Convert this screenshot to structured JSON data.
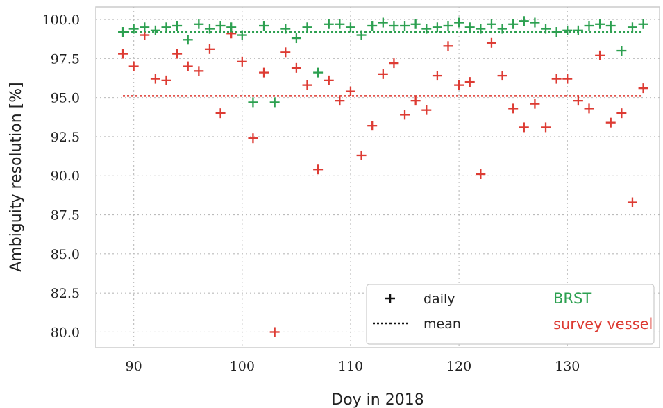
{
  "chart_data": {
    "type": "scatter",
    "xlabel": "Doy in 2018",
    "ylabel": "Ambiguity resolution [%]",
    "xlim": [
      86.5,
      138.5
    ],
    "ylim": [
      79.0,
      100.8
    ],
    "xticks": [
      90,
      100,
      110,
      120,
      130
    ],
    "xtick_labels": [
      "90",
      "100",
      "110",
      "120",
      "130"
    ],
    "yticks": [
      80.0,
      82.5,
      85.0,
      87.5,
      90.0,
      92.5,
      95.0,
      97.5,
      100.0
    ],
    "ytick_labels": [
      "80.0",
      "82.5",
      "85.0",
      "87.5",
      "90.0",
      "92.5",
      "95.0",
      "97.5",
      "100.0"
    ],
    "grid": true,
    "legend": {
      "placement": "bottom-right",
      "daily_label": "daily",
      "mean_label": "mean"
    },
    "series": [
      {
        "name": "BRST",
        "color": "#2ca050",
        "mean": 99.2,
        "x": [
          89,
          90,
          91,
          92,
          93,
          94,
          95,
          96,
          97,
          98,
          99,
          100,
          101,
          102,
          103,
          104,
          105,
          106,
          107,
          108,
          109,
          110,
          111,
          112,
          113,
          114,
          115,
          116,
          117,
          118,
          119,
          120,
          121,
          122,
          123,
          124,
          125,
          126,
          127,
          128,
          129,
          130,
          131,
          132,
          133,
          134,
          135,
          136,
          137
        ],
        "y": [
          99.2,
          99.4,
          99.5,
          99.3,
          99.5,
          99.6,
          98.7,
          99.7,
          99.4,
          99.6,
          99.5,
          99.0,
          94.7,
          99.6,
          94.7,
          99.4,
          98.8,
          99.5,
          96.6,
          99.7,
          99.7,
          99.5,
          99.0,
          99.6,
          99.8,
          99.6,
          99.6,
          99.7,
          99.4,
          99.5,
          99.6,
          99.8,
          99.5,
          99.4,
          99.7,
          99.4,
          99.7,
          99.9,
          99.8,
          99.4,
          99.2,
          99.3,
          99.3,
          99.6,
          99.7,
          99.6,
          98.0,
          99.5,
          99.7
        ]
      },
      {
        "name": "survey vessel",
        "color": "#dd3b33",
        "mean": 95.1,
        "x": [
          89,
          90,
          91,
          92,
          93,
          94,
          95,
          96,
          97,
          98,
          99,
          100,
          101,
          102,
          103,
          104,
          105,
          106,
          107,
          108,
          109,
          110,
          111,
          112,
          113,
          114,
          115,
          116,
          117,
          118,
          119,
          120,
          121,
          122,
          123,
          124,
          125,
          126,
          127,
          128,
          129,
          130,
          131,
          132,
          133,
          134,
          135,
          136,
          137
        ],
        "y": [
          97.8,
          97.0,
          99.0,
          96.2,
          96.1,
          97.8,
          97.0,
          96.7,
          98.1,
          94.0,
          99.1,
          97.3,
          92.4,
          96.6,
          80.0,
          97.9,
          96.9,
          95.8,
          90.4,
          96.1,
          94.8,
          95.4,
          91.3,
          93.2,
          96.5,
          97.2,
          93.9,
          94.8,
          94.2,
          96.4,
          98.3,
          95.8,
          96.0,
          90.1,
          98.5,
          96.4,
          94.3,
          93.1,
          94.6,
          93.1,
          96.2,
          96.2,
          94.8,
          94.3,
          97.7,
          93.4,
          94.0,
          88.3,
          95.6
        ]
      }
    ]
  }
}
